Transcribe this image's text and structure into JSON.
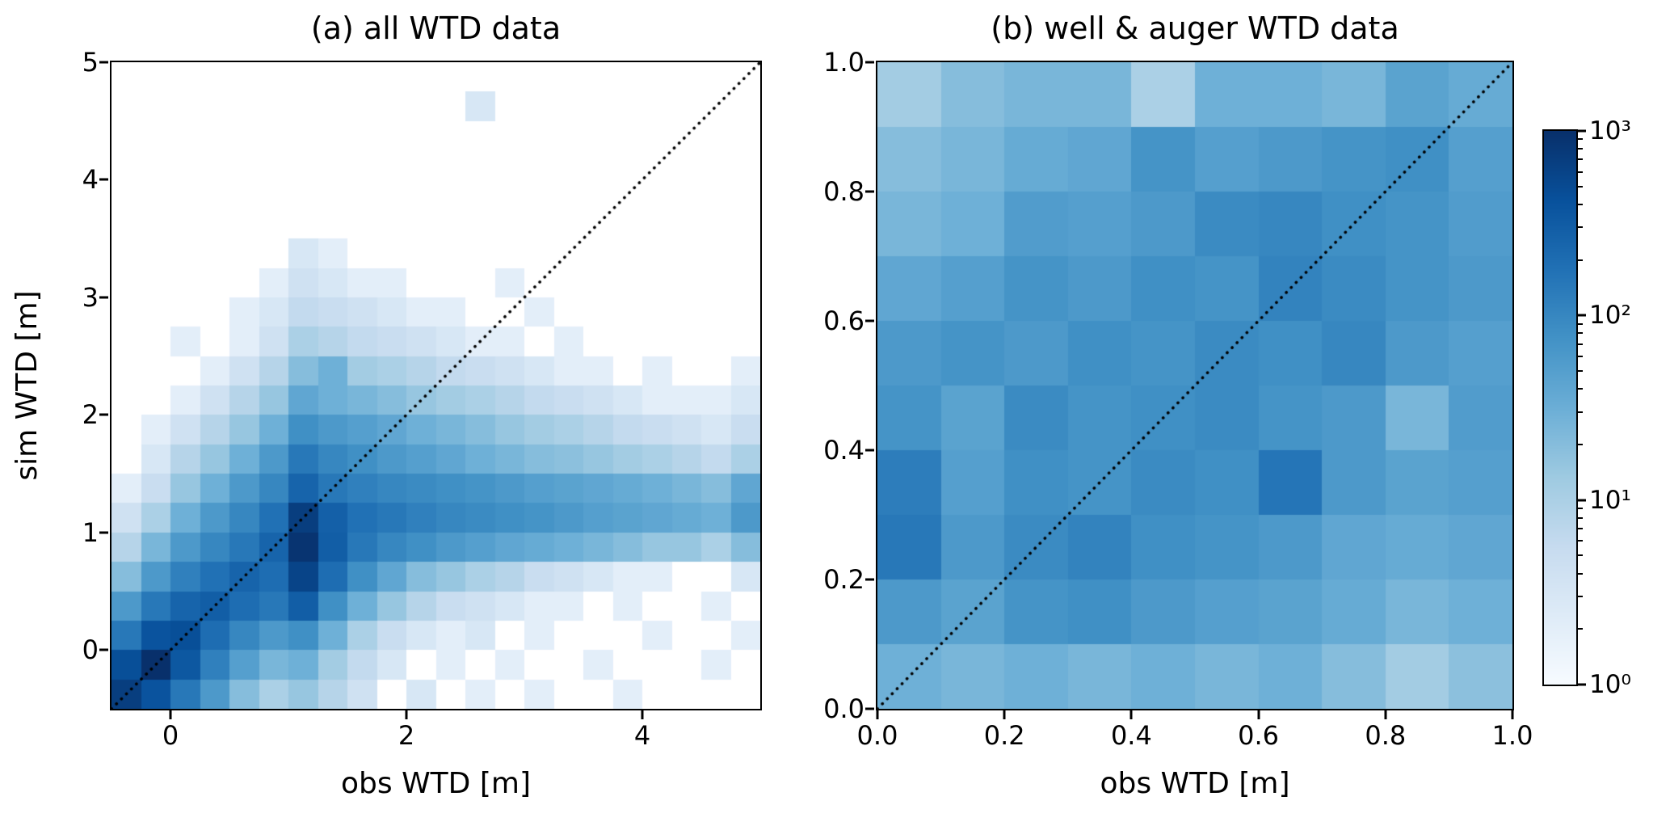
{
  "figure": {
    "background": "#ffffff",
    "text_color": "#000000"
  },
  "chart_data": [
    {
      "type": "heatmap",
      "panel": "a",
      "title": "(a) all WTD data",
      "xlabel": "obs WTD [m]",
      "ylabel": "sim WTD [m]",
      "xlim": [
        -0.5,
        5.0
      ],
      "ylim": [
        -0.5,
        5.0
      ],
      "xticks": [
        0,
        2,
        4
      ],
      "xtick_labels": [
        "0",
        "2",
        "4"
      ],
      "yticks": [
        0,
        1,
        2,
        3,
        4,
        5
      ],
      "ytick_labels": [
        "0",
        "1",
        "2",
        "3",
        "4",
        "5"
      ],
      "bin_size": 0.25,
      "nx": 22,
      "ny": 22,
      "norm": "log",
      "vmin": 1,
      "vmax": 1000,
      "identity_line": {
        "style": "dotted",
        "color": "#000000"
      },
      "counts_rows_bottom_to_top": [
        [
          700,
          400,
          150,
          60,
          20,
          10,
          15,
          8,
          4,
          0,
          3,
          0,
          2,
          0,
          2,
          0,
          0,
          2,
          0,
          0,
          0,
          0
        ],
        [
          450,
          1000,
          350,
          120,
          50,
          25,
          30,
          12,
          6,
          3,
          0,
          2,
          0,
          2,
          0,
          0,
          2,
          0,
          0,
          0,
          2,
          0
        ],
        [
          150,
          400,
          450,
          200,
          100,
          60,
          80,
          30,
          10,
          5,
          3,
          2,
          3,
          0,
          2,
          0,
          0,
          0,
          2,
          0,
          0,
          2
        ],
        [
          60,
          150,
          250,
          300,
          200,
          150,
          300,
          80,
          30,
          15,
          8,
          5,
          4,
          3,
          2,
          2,
          0,
          2,
          0,
          0,
          2,
          0
        ],
        [
          20,
          60,
          120,
          180,
          250,
          200,
          600,
          200,
          80,
          40,
          20,
          15,
          10,
          8,
          5,
          4,
          3,
          2,
          2,
          0,
          0,
          3
        ],
        [
          8,
          25,
          60,
          100,
          150,
          250,
          900,
          300,
          150,
          100,
          80,
          60,
          50,
          40,
          35,
          30,
          25,
          20,
          15,
          15,
          10,
          20
        ],
        [
          4,
          10,
          30,
          60,
          100,
          180,
          700,
          280,
          180,
          150,
          120,
          100,
          90,
          80,
          70,
          60,
          50,
          45,
          40,
          35,
          30,
          60
        ],
        [
          2,
          5,
          15,
          30,
          60,
          100,
          250,
          150,
          120,
          100,
          90,
          80,
          70,
          60,
          50,
          45,
          40,
          35,
          30,
          25,
          20,
          40
        ],
        [
          0,
          3,
          8,
          15,
          30,
          60,
          150,
          100,
          80,
          60,
          50,
          40,
          30,
          25,
          20,
          18,
          15,
          12,
          10,
          8,
          6,
          10
        ],
        [
          0,
          2,
          4,
          8,
          15,
          30,
          80,
          60,
          50,
          40,
          30,
          25,
          20,
          15,
          12,
          10,
          8,
          6,
          5,
          4,
          3,
          5
        ],
        [
          0,
          0,
          2,
          4,
          8,
          15,
          40,
          30,
          25,
          20,
          15,
          12,
          10,
          8,
          6,
          5,
          4,
          3,
          2,
          2,
          2,
          3
        ],
        [
          0,
          0,
          0,
          2,
          4,
          8,
          20,
          30,
          12,
          10,
          8,
          6,
          5,
          4,
          3,
          2,
          2,
          0,
          2,
          0,
          0,
          2
        ],
        [
          0,
          0,
          2,
          0,
          2,
          4,
          10,
          8,
          6,
          5,
          4,
          3,
          2,
          2,
          0,
          2,
          0,
          0,
          0,
          0,
          0,
          0
        ],
        [
          0,
          0,
          0,
          0,
          2,
          3,
          6,
          5,
          4,
          3,
          2,
          2,
          0,
          0,
          2,
          0,
          0,
          0,
          0,
          0,
          0,
          0
        ],
        [
          0,
          0,
          0,
          0,
          0,
          2,
          4,
          3,
          2,
          2,
          0,
          0,
          0,
          2,
          0,
          0,
          0,
          0,
          0,
          0,
          0,
          0
        ],
        [
          0,
          0,
          0,
          0,
          0,
          0,
          3,
          2,
          0,
          0,
          0,
          0,
          0,
          0,
          0,
          0,
          0,
          0,
          0,
          0,
          0,
          0
        ],
        [
          0,
          0,
          0,
          0,
          0,
          0,
          0,
          0,
          0,
          0,
          0,
          0,
          0,
          0,
          0,
          0,
          0,
          0,
          0,
          0,
          0,
          0
        ],
        [
          0,
          0,
          0,
          0,
          0,
          0,
          0,
          0,
          0,
          0,
          0,
          0,
          0,
          0,
          0,
          0,
          0,
          0,
          0,
          0,
          0,
          0
        ],
        [
          0,
          0,
          0,
          0,
          0,
          0,
          0,
          0,
          0,
          0,
          0,
          0,
          0,
          0,
          0,
          0,
          0,
          0,
          0,
          0,
          0,
          0
        ],
        [
          0,
          0,
          0,
          0,
          0,
          0,
          0,
          0,
          0,
          0,
          0,
          0,
          0,
          0,
          0,
          0,
          0,
          0,
          0,
          0,
          0,
          0
        ],
        [
          0,
          0,
          0,
          0,
          0,
          0,
          0,
          0,
          0,
          0,
          0,
          0,
          3,
          0,
          0,
          0,
          0,
          0,
          0,
          0,
          0,
          0
        ],
        [
          0,
          0,
          0,
          0,
          0,
          0,
          0,
          0,
          0,
          0,
          0,
          0,
          0,
          0,
          0,
          0,
          0,
          0,
          0,
          0,
          0,
          0
        ]
      ]
    },
    {
      "type": "heatmap",
      "panel": "b",
      "title": "(b) well & auger WTD data",
      "xlabel": "obs WTD [m]",
      "ylabel": "",
      "xlim": [
        0.0,
        1.0
      ],
      "ylim": [
        0.0,
        1.0
      ],
      "xticks": [
        0.0,
        0.2,
        0.4,
        0.6,
        0.8,
        1.0
      ],
      "xtick_labels": [
        "0.0",
        "0.2",
        "0.4",
        "0.6",
        "0.8",
        "1.0"
      ],
      "yticks": [
        0.0,
        0.2,
        0.4,
        0.6,
        0.8,
        1.0
      ],
      "ytick_labels": [
        "0.0",
        "0.2",
        "0.4",
        "0.6",
        "0.8",
        "1.0"
      ],
      "bin_size": 0.1,
      "nx": 10,
      "ny": 10,
      "norm": "log",
      "vmin": 1,
      "vmax": 1000,
      "identity_line": {
        "style": "dotted",
        "color": "#000000"
      },
      "counts_rows_bottom_to_top": [
        [
          30,
          25,
          30,
          25,
          30,
          25,
          30,
          20,
          12,
          18
        ],
        [
          60,
          45,
          70,
          80,
          60,
          50,
          45,
          35,
          25,
          30
        ],
        [
          150,
          60,
          90,
          110,
          80,
          70,
          60,
          40,
          35,
          40
        ],
        [
          130,
          50,
          80,
          70,
          90,
          80,
          160,
          60,
          45,
          50
        ],
        [
          70,
          45,
          90,
          70,
          80,
          90,
          70,
          60,
          25,
          55
        ],
        [
          60,
          70,
          60,
          80,
          70,
          90,
          80,
          100,
          60,
          50
        ],
        [
          40,
          50,
          70,
          60,
          80,
          70,
          110,
          90,
          70,
          60
        ],
        [
          25,
          30,
          55,
          50,
          60,
          90,
          100,
          80,
          70,
          55
        ],
        [
          20,
          25,
          35,
          40,
          70,
          50,
          60,
          70,
          80,
          50
        ],
        [
          12,
          20,
          25,
          25,
          10,
          30,
          30,
          25,
          45,
          35
        ]
      ]
    },
    {
      "type": "colorbar",
      "orientation": "vertical",
      "scale": "log",
      "vmin": 1,
      "vmax": 1000,
      "tick_values": [
        1,
        10,
        100,
        1000
      ],
      "tick_labels": [
        "10⁰",
        "10¹",
        "10²",
        "10³"
      ],
      "colormap": "Blues",
      "colormap_stops": [
        "#f7fbff",
        "#deebf7",
        "#c6dbef",
        "#9ecae1",
        "#6baed6",
        "#4292c6",
        "#2171b5",
        "#08519c",
        "#08306b"
      ]
    }
  ]
}
